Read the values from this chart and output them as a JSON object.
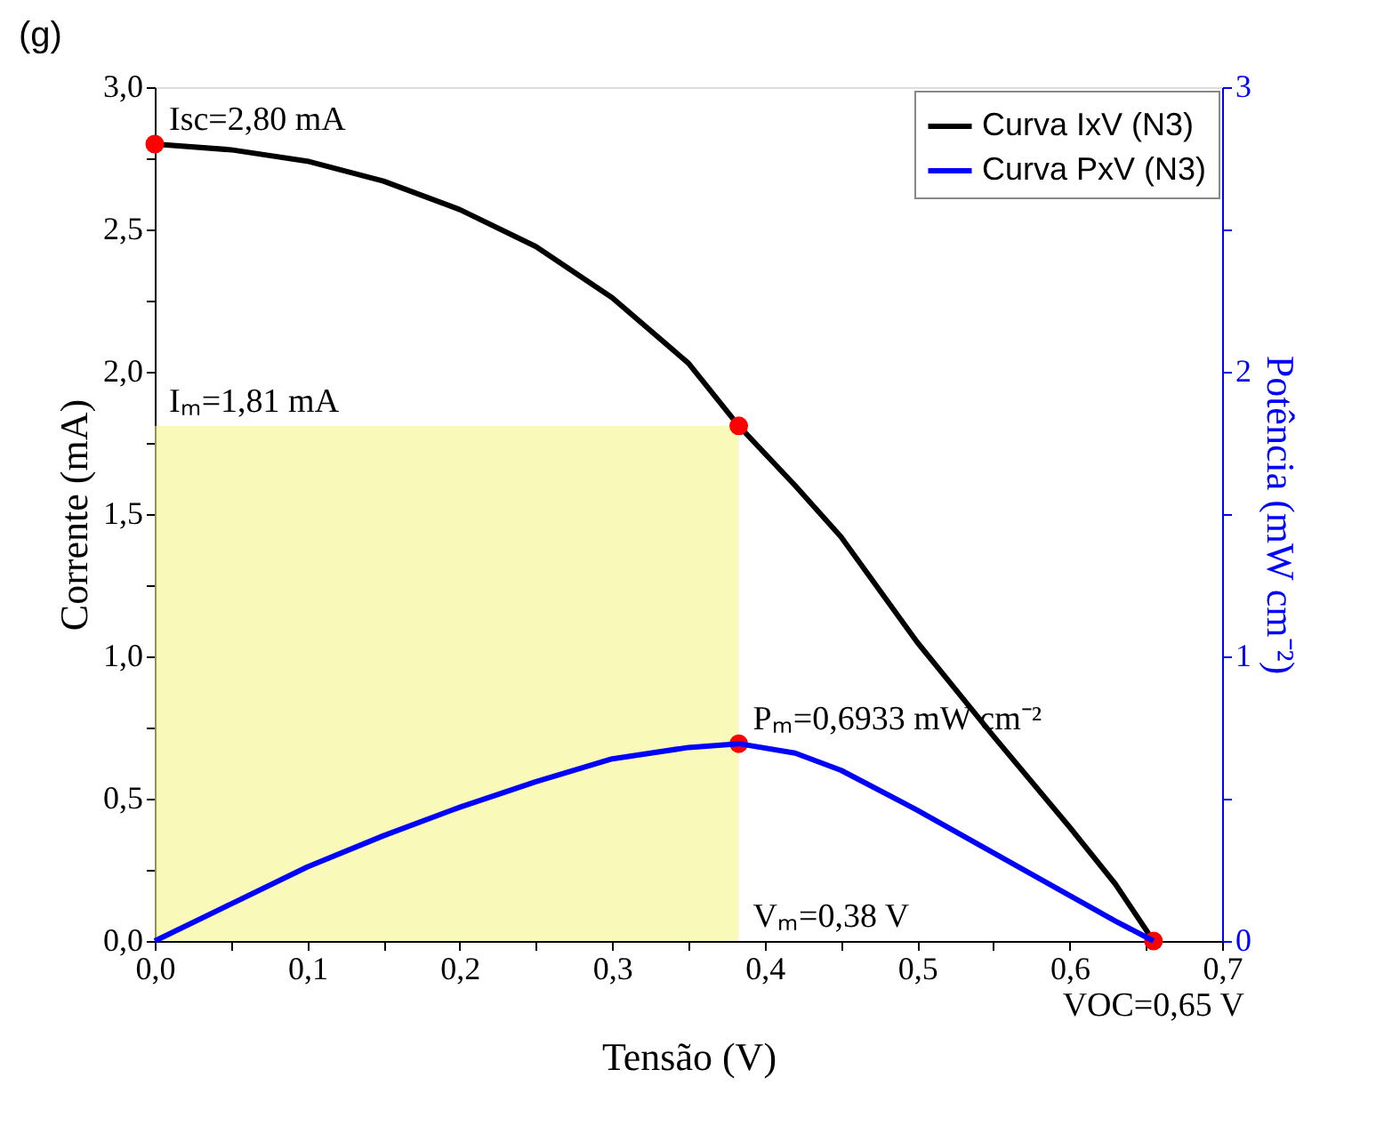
{
  "chart_data": {
    "type": "line",
    "title": "(g)",
    "xlabel": "Tensão (V)",
    "ylabel": "Corrente (mA)",
    "y2label": "Potência (mW cm⁻²)",
    "xlim": [
      0,
      0.7
    ],
    "ylim": [
      0,
      3
    ],
    "y2lim": [
      0,
      3
    ],
    "xticks": [
      {
        "value": 0,
        "label": "0,0"
      },
      {
        "value": 0.05,
        "label": null
      },
      {
        "value": 0.1,
        "label": "0,1"
      },
      {
        "value": 0.15,
        "label": null
      },
      {
        "value": 0.2,
        "label": "0,2"
      },
      {
        "value": 0.25,
        "label": null
      },
      {
        "value": 0.3,
        "label": "0,3"
      },
      {
        "value": 0.35,
        "label": null
      },
      {
        "value": 0.4,
        "label": "0,4"
      },
      {
        "value": 0.45,
        "label": null
      },
      {
        "value": 0.5,
        "label": "0,5"
      },
      {
        "value": 0.55,
        "label": null
      },
      {
        "value": 0.6,
        "label": "0,6"
      },
      {
        "value": 0.65,
        "label": null
      },
      {
        "value": 0.7,
        "label": "0,7"
      }
    ],
    "yticks": [
      {
        "value": 0,
        "label": "0,0"
      },
      {
        "value": 0.25,
        "label": null
      },
      {
        "value": 0.5,
        "label": "0,5"
      },
      {
        "value": 0.75,
        "label": null
      },
      {
        "value": 1,
        "label": "1,0"
      },
      {
        "value": 1.25,
        "label": null
      },
      {
        "value": 1.5,
        "label": "1,5"
      },
      {
        "value": 1.75,
        "label": null
      },
      {
        "value": 2,
        "label": "2,0"
      },
      {
        "value": 2.25,
        "label": null
      },
      {
        "value": 2.5,
        "label": "2,5"
      },
      {
        "value": 2.75,
        "label": null
      },
      {
        "value": 3,
        "label": "3,0"
      }
    ],
    "y2ticks": [
      0,
      {
        "value": 0.5,
        "label": null
      },
      1,
      {
        "value": 1.5,
        "label": null
      },
      2,
      {
        "value": 2.5,
        "label": null
      },
      3
    ],
    "grid": false,
    "legend": "top right",
    "line_style": "solid",
    "series": [
      {
        "type": "area",
        "color": "#f5f58a",
        "x": [
          0,
          0.383
        ],
        "values": [
          1.81,
          1.81
        ]
      },
      {
        "name": "Curva IxV (N3)",
        "color": "#000000",
        "x": [
          0,
          0.05,
          0.1,
          0.15,
          0.2,
          0.25,
          0.3,
          0.35,
          0.383,
          0.42,
          0.45,
          0.5,
          0.55,
          0.6,
          0.63,
          0.655
        ],
        "values": [
          2.8,
          2.78,
          2.74,
          2.67,
          2.57,
          2.44,
          2.26,
          2.03,
          1.81,
          1.6,
          1.42,
          1.05,
          0.72,
          0.4,
          0.2,
          0
        ]
      },
      {
        "name": "Curva PxV (N3)",
        "color": "#0000ff",
        "axis": "y2",
        "x": [
          0,
          0.05,
          0.1,
          0.15,
          0.2,
          0.25,
          0.3,
          0.35,
          0.383,
          0.42,
          0.45,
          0.5,
          0.55,
          0.6,
          0.63,
          0.655
        ],
        "values": [
          0,
          0.13,
          0.26,
          0.37,
          0.47,
          0.56,
          0.64,
          0.68,
          0.6933,
          0.66,
          0.6,
          0.46,
          0.31,
          0.16,
          0.07,
          0
        ]
      },
      {
        "type": "scatter",
        "marker": "circle",
        "color": "#ff0000",
        "x": [
          0,
          0.383,
          0.383,
          0.655
        ],
        "values": [
          2.8,
          1.81,
          0.6933,
          0
        ]
      }
    ],
    "annotations": [
      {
        "text": "Isc=2,80 mA",
        "x": 0,
        "y": 2.8
      },
      {
        "text": "Iₘ=1,81 mA",
        "x": 0,
        "y": 1.81
      },
      {
        "text": "Pₘ=0,6933 mW cm⁻²",
        "x": 0.383,
        "y": 0.6933
      },
      {
        "text": "Vₘ=0,38 V",
        "x": 0.383,
        "y": 0
      },
      {
        "text": "VOC=0,65 V",
        "x": 0.655,
        "y": 0
      }
    ]
  }
}
